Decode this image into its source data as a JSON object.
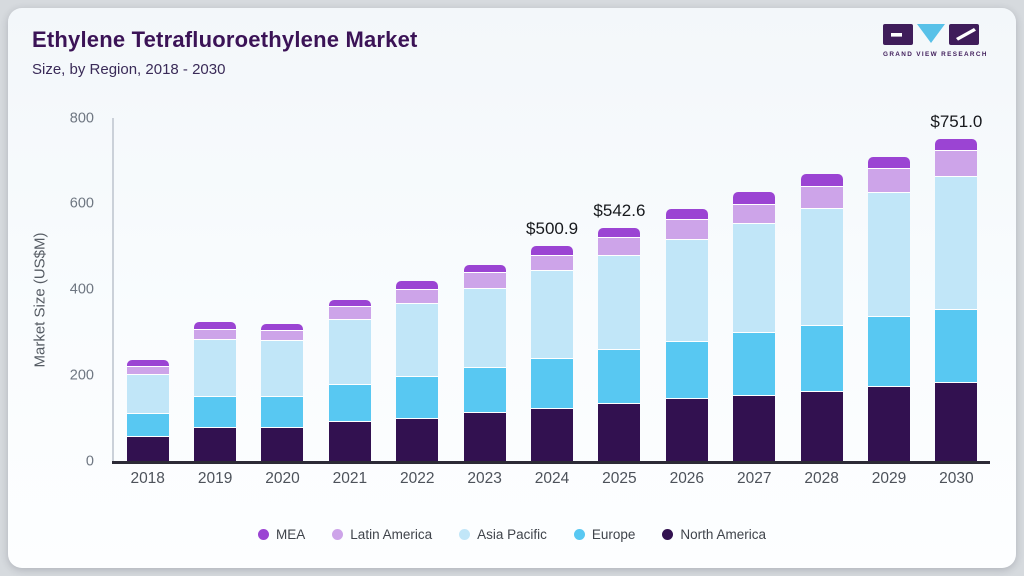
{
  "header": {
    "title": "Ethylene Tetrafluoroethylene Market",
    "subtitle": "Size, by Region, 2018 - 2030"
  },
  "logo": {
    "text": "GRAND VIEW RESEARCH",
    "purple": "#3f1d5a",
    "cyan": "#58c1e8"
  },
  "chart_data": {
    "type": "bar",
    "stacked": true,
    "title": "Ethylene Tetrafluoroethylene Market Size, by Region, 2018 - 2030",
    "xlabel": "",
    "ylabel": "Market Size (US$M)",
    "ylim": [
      0,
      800
    ],
    "yticks": [
      0,
      200,
      400,
      600,
      800
    ],
    "grid": false,
    "legend_position": "bottom",
    "categories": [
      "2018",
      "2019",
      "2020",
      "2021",
      "2022",
      "2023",
      "2024",
      "2025",
      "2026",
      "2027",
      "2028",
      "2029",
      "2030"
    ],
    "series": [
      {
        "name": "North America",
        "color": "#321150",
        "values": [
          56.8,
          77.9,
          77.9,
          92.0,
          99.0,
          113.0,
          120.9,
          133.3,
          144.3,
          152.0,
          161.4,
          171.5,
          181.7
        ]
      },
      {
        "name": "Europe",
        "color": "#58c8f2",
        "values": [
          53.8,
          71.8,
          71.8,
          85.0,
          98.0,
          105.0,
          116.0,
          124.7,
          132.4,
          145.7,
          154.4,
          163.7,
          171.5
        ]
      },
      {
        "name": "Asia Pacific",
        "color": "#c1e6f8",
        "values": [
          90.5,
          132.6,
          129.4,
          152.0,
          169.0,
          183.0,
          205.5,
          220.0,
          239.5,
          255.9,
          273.0,
          291.0,
          310.3
        ]
      },
      {
        "name": "Latin America",
        "color": "#cda4e9",
        "values": [
          18.7,
          23.4,
          23.4,
          29.5,
          32.7,
          36.5,
          36.7,
          41.2,
          46.8,
          44.4,
          50.5,
          53.8,
          58.5
        ]
      },
      {
        "name": "MEA",
        "color": "#9b44d3",
        "values": [
          16.4,
          17.8,
          17.3,
          17.3,
          21.8,
          20.4,
          21.8,
          23.4,
          24.1,
          29.5,
          29.7,
          29.5,
          29.0
        ]
      }
    ],
    "totals_labeled": [
      {
        "category": "2024",
        "text": "$500.9",
        "value": 500.9
      },
      {
        "category": "2025",
        "text": "$542.6",
        "value": 542.6
      },
      {
        "category": "2030",
        "text": "$751.0",
        "value": 751.0
      }
    ],
    "legend": [
      "MEA",
      "Latin America",
      "Asia Pacific",
      "Europe",
      "North America"
    ]
  }
}
